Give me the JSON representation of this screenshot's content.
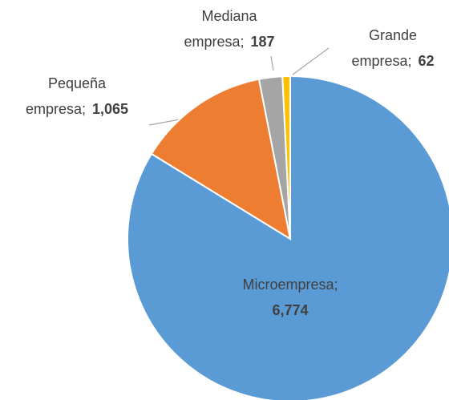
{
  "chart_data": {
    "type": "pie",
    "categories": [
      "Microempresa",
      "Pequeña empresa",
      "Mediana empresa",
      "Grande empresa"
    ],
    "values": [
      6774,
      1065,
      187,
      62
    ],
    "value_labels": [
      "6,774",
      "1,065",
      "187",
      "62"
    ],
    "label_separator": ";",
    "colors": [
      "#5b9bd5",
      "#ed7d31",
      "#a5a5a5",
      "#ffc000"
    ]
  }
}
